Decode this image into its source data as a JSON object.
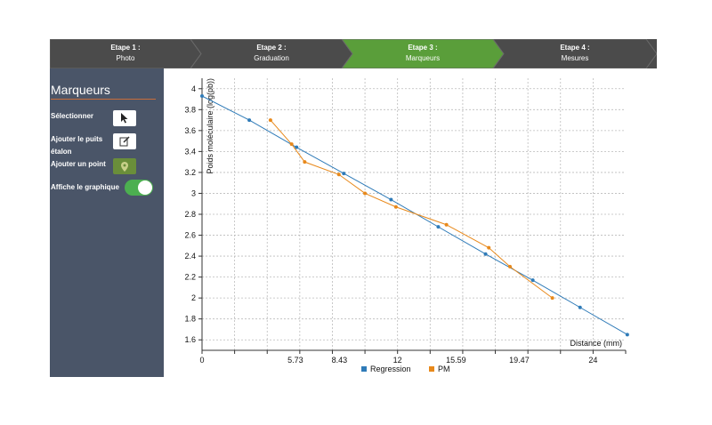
{
  "steps": [
    {
      "title": "Etape 1 :",
      "label": "Photo",
      "state": "done"
    },
    {
      "title": "Etape 2 :",
      "label": "Graduation",
      "state": "done"
    },
    {
      "title": "Etape 3 :",
      "label": "Marqueurs",
      "state": "active"
    },
    {
      "title": "Etape 4 :",
      "label": "Mesures",
      "state": "todo"
    }
  ],
  "colors": {
    "step_bg": "#4b4b4b",
    "step_active": "#5a9e3a",
    "sidebar_bg": "#4a5568",
    "accent_orange": "#c96d3a",
    "regression": "#2f7bb8",
    "pm": "#e8891b"
  },
  "sidebar": {
    "title": "Marqueurs",
    "select_label": "Sélectionner",
    "add_well_label": "Ajouter le puits étalon",
    "add_point_label": "Ajouter un point",
    "show_graph_label": "Affiche le graphique",
    "show_graph_on": true,
    "icons": [
      "cursor-icon",
      "edit-icon",
      "location-pin-icon"
    ]
  },
  "chart_data": {
    "type": "line",
    "xlabel": "Distance (mm)",
    "ylabel": "Poids moléculaire (log(pb))",
    "xlim": [
      0,
      26
    ],
    "ylim": [
      1.5,
      4.1
    ],
    "x_ticks": [
      "0",
      "5.73",
      "8.43",
      "12",
      "15.59",
      "19.47",
      "24"
    ],
    "x_tick_values": [
      0,
      5.73,
      8.43,
      12,
      15.59,
      19.47,
      24
    ],
    "y_ticks": [
      "1.6",
      "1.8",
      "2",
      "2.2",
      "2.4",
      "2.6",
      "2.8",
      "3",
      "3.2",
      "3.4",
      "3.6",
      "3.8",
      "4"
    ],
    "grid": true,
    "legend_position": "bottom-center",
    "series": [
      {
        "name": "Regression",
        "color": "#2f7bb8",
        "x": [
          0,
          2.9,
          5.8,
          8.7,
          11.6,
          14.5,
          17.4,
          20.3,
          23.2,
          26.1
        ],
        "y": [
          3.93,
          3.7,
          3.44,
          3.19,
          2.94,
          2.68,
          2.42,
          2.17,
          1.91,
          1.65
        ]
      },
      {
        "name": "PM",
        "color": "#e8891b",
        "x": [
          4.2,
          5.5,
          6.3,
          8.4,
          10.0,
          11.9,
          15.0,
          17.6,
          18.9,
          21.5
        ],
        "y": [
          3.7,
          3.47,
          3.3,
          3.18,
          3.0,
          2.87,
          2.7,
          2.48,
          2.3,
          2.0
        ]
      }
    ]
  }
}
